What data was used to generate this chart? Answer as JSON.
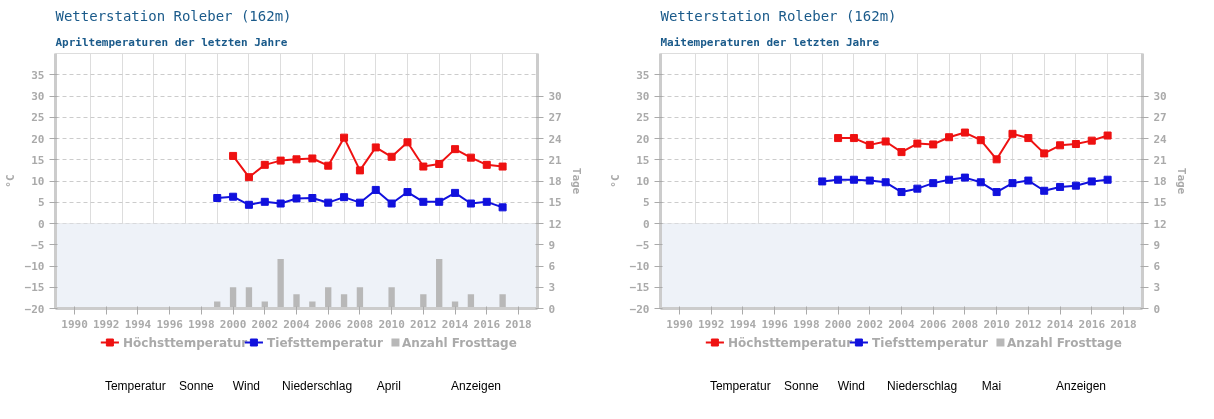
{
  "chart_data": [
    {
      "type": "line",
      "title": "Wetterstation Roleber (162m)",
      "subtitle": "Apriltemperaturen der letzten Jahre",
      "ylabel": "°C",
      "y2label": "Tage",
      "x": [
        1999,
        2000,
        2001,
        2002,
        2003,
        2004,
        2005,
        2006,
        2007,
        2008,
        2009,
        2010,
        2011,
        2012,
        2013,
        2014,
        2015,
        2016,
        2017
      ],
      "series": [
        {
          "name": "Höchsttemperatur",
          "color": "#ee1111",
          "values": [
            null,
            15.9,
            10.9,
            13.8,
            14.8,
            15.1,
            15.3,
            13.6,
            20.2,
            12.5,
            17.9,
            15.7,
            19.1,
            13.4,
            14.0,
            17.5,
            15.5,
            13.8,
            13.4
          ]
        },
        {
          "name": "Tiefsttemperatur",
          "color": "#1111dd",
          "values": [
            6.0,
            6.3,
            4.4,
            5.1,
            4.7,
            5.9,
            6.0,
            4.9,
            6.2,
            4.9,
            7.9,
            4.7,
            7.4,
            5.1,
            5.1,
            7.2,
            4.7,
            5.1,
            3.8
          ]
        },
        {
          "name": "Anzahl Frosttage",
          "type": "bar",
          "axis": "y2",
          "color": "#b8b8b8",
          "values": [
            1,
            3,
            3,
            1,
            7,
            2,
            1,
            3,
            2,
            3,
            0,
            3,
            0,
            2,
            7,
            1,
            2,
            0,
            2
          ]
        }
      ],
      "xlim": [
        1988.8,
        2019.2
      ],
      "xticks": [
        1990,
        1992,
        1994,
        1996,
        1998,
        2000,
        2002,
        2004,
        2006,
        2008,
        2010,
        2012,
        2014,
        2016,
        2018
      ],
      "ylim": [
        -20,
        40
      ],
      "yticks": [
        -20,
        -15,
        -10,
        -5,
        0,
        5,
        10,
        15,
        20,
        25,
        30,
        35
      ],
      "y2lim": [
        0,
        36
      ],
      "y2ticks": [
        0,
        3,
        6,
        9,
        12,
        15,
        18,
        21,
        24,
        27,
        30
      ],
      "bands": [
        {
          "axis": "y",
          "from": -20,
          "to": 0,
          "color": "#eef2f8"
        }
      ],
      "grid": true,
      "legend": "bottom",
      "marker": "square",
      "line_style": "solid",
      "annotations": [
        "Temperatur",
        "Sonne",
        "Wind",
        "Niederschlag",
        "April",
        "Anzeigen"
      ]
    },
    {
      "type": "line",
      "title": "Wetterstation Roleber (162m)",
      "subtitle": "Maitemperaturen der letzten Jahre",
      "ylabel": "°C",
      "y2label": "Tage",
      "x": [
        1999,
        2000,
        2001,
        2002,
        2003,
        2004,
        2005,
        2006,
        2007,
        2008,
        2009,
        2010,
        2011,
        2012,
        2013,
        2014,
        2015,
        2016,
        2017
      ],
      "series": [
        {
          "name": "Höchsttemperatur",
          "color": "#ee1111",
          "values": [
            null,
            20.1,
            20.1,
            18.5,
            19.3,
            16.8,
            18.8,
            18.6,
            20.3,
            21.4,
            19.6,
            15.1,
            21.1,
            20.1,
            16.5,
            18.4,
            18.7,
            19.5,
            20.7
          ]
        },
        {
          "name": "Tiefsttemperatur",
          "color": "#1111dd",
          "values": [
            9.9,
            10.3,
            10.3,
            10.1,
            9.7,
            7.4,
            8.2,
            9.5,
            10.3,
            10.8,
            9.7,
            7.4,
            9.5,
            10.1,
            7.7,
            8.6,
            8.9,
            9.9,
            10.3
          ]
        },
        {
          "name": "Anzahl Frosttage",
          "type": "bar",
          "axis": "y2",
          "color": "#b8b8b8",
          "values": [
            null,
            null,
            null,
            null,
            null,
            null,
            null,
            null,
            null,
            null,
            null,
            null,
            null,
            null,
            null,
            null,
            null,
            null,
            null
          ]
        }
      ],
      "xlim": [
        1988.8,
        2019.2
      ],
      "xticks": [
        1990,
        1992,
        1994,
        1996,
        1998,
        2000,
        2002,
        2004,
        2006,
        2008,
        2010,
        2012,
        2014,
        2016,
        2018
      ],
      "ylim": [
        -20,
        40
      ],
      "yticks": [
        -20,
        -15,
        -10,
        -5,
        0,
        5,
        10,
        15,
        20,
        25,
        30,
        35
      ],
      "y2lim": [
        0,
        36
      ],
      "y2ticks": [
        0,
        3,
        6,
        9,
        12,
        15,
        18,
        21,
        24,
        27,
        30
      ],
      "bands": [
        {
          "axis": "y",
          "from": -20,
          "to": 0,
          "color": "#eef2f8"
        }
      ],
      "grid": true,
      "legend": "bottom",
      "marker": "square",
      "line_style": "solid",
      "annotations": [
        "Temperatur",
        "Sonne",
        "Wind",
        "Niederschlag",
        "Mai",
        "Anzeigen"
      ]
    }
  ]
}
